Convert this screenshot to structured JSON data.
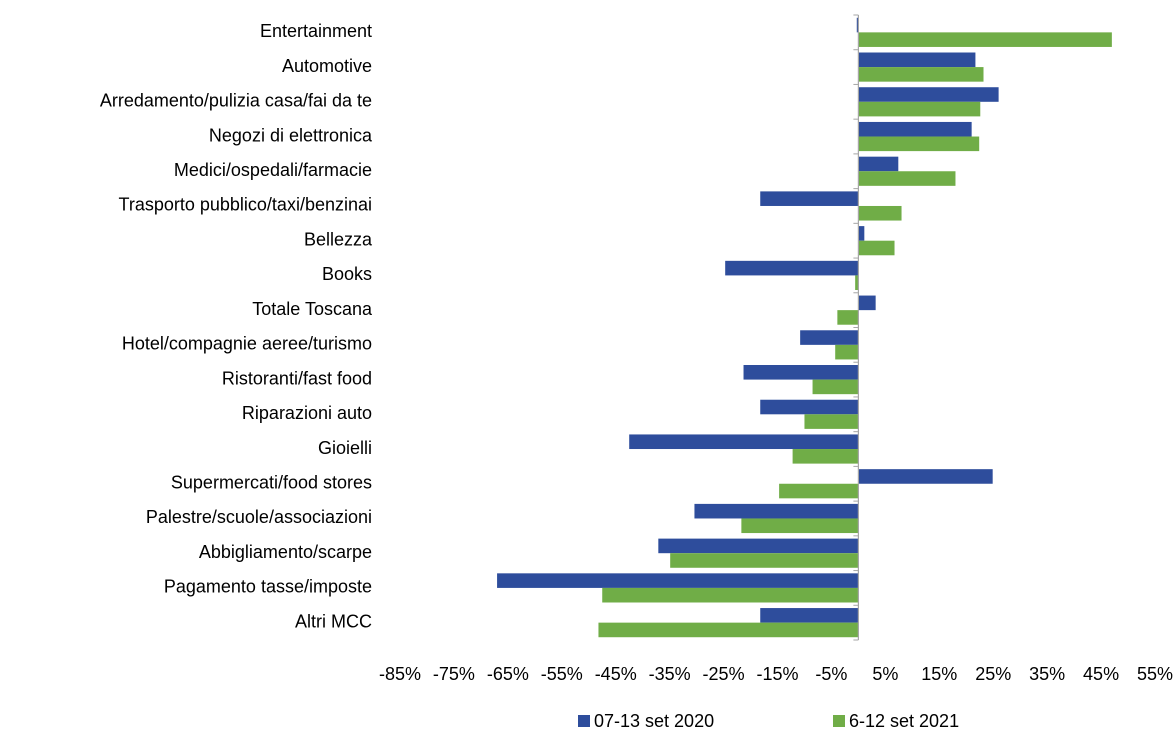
{
  "chart_data": {
    "type": "hbar",
    "categories": [
      "Entertainment",
      "Automotive",
      "Arredamento/pulizia casa/fai da te",
      "Negozi di elettronica",
      "Medici/ospedali/farmacie",
      "Trasporto pubblico/taxi/benzinai",
      "Bellezza",
      "Books",
      "Totale Toscana",
      "Hotel/compagnie aeree/turismo",
      "Ristoranti/fast food",
      "Riparazioni auto",
      "Gioielli",
      "Supermercati/food stores",
      "Palestre/scuole/associazioni",
      "Abbigliamento/scarpe",
      "Pagamento tasse/imposte",
      "Altri MCC"
    ],
    "series": [
      {
        "name": "07-13 set 2020",
        "color": "#2e4d9c",
        "values": [
          -0.3,
          21.7,
          26,
          21,
          7.4,
          -18.2,
          1.1,
          -24.7,
          3.2,
          -10.8,
          -21.3,
          -18.2,
          -42.5,
          24.9,
          -30.4,
          -37.1,
          -67,
          -18.2
        ]
      },
      {
        "name": "6-12 set 2021",
        "color": "#70ad47",
        "values": [
          47,
          23.2,
          22.6,
          22.4,
          18,
          8,
          6.7,
          -0.6,
          -3.9,
          -4.3,
          -8.5,
          -10,
          -12.2,
          -14.7,
          -21.7,
          -34.9,
          -47.5,
          -48.2
        ]
      }
    ],
    "xlim": [
      -85,
      55
    ],
    "xticks": [
      {
        "value": -85,
        "label": "-85%"
      },
      {
        "value": -75,
        "label": "-75%"
      },
      {
        "value": -65,
        "label": "-65%"
      },
      {
        "value": -55,
        "label": "-55%"
      },
      {
        "value": -45,
        "label": "-45%"
      },
      {
        "value": -35,
        "label": "-35%"
      },
      {
        "value": -25,
        "label": "-25%"
      },
      {
        "value": -15,
        "label": "-15%"
      },
      {
        "value": -5,
        "label": "-5%"
      },
      {
        "value": 5,
        "label": "5%"
      },
      {
        "value": 15,
        "label": "15%"
      },
      {
        "value": 25,
        "label": "25%"
      },
      {
        "value": 35,
        "label": "35%"
      },
      {
        "value": 45,
        "label": "45%"
      },
      {
        "value": 55,
        "label": "55%"
      }
    ],
    "grid": false,
    "legend": "bottom"
  }
}
